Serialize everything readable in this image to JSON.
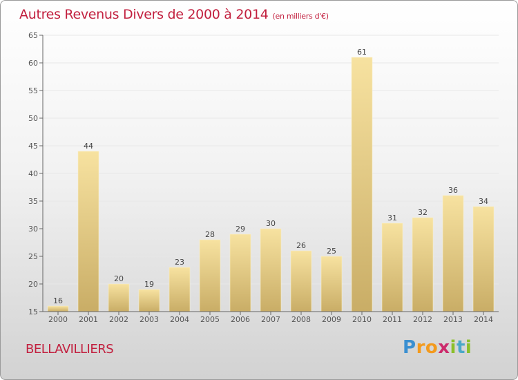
{
  "header": {
    "title": "Autres Revenus Divers de 2000 à 2014",
    "subtitle": "(en milliers d'€)"
  },
  "place": "BELLAVILLIERS",
  "brand": {
    "letters": [
      "P",
      "r",
      "o",
      "x",
      "i",
      "t",
      "i"
    ],
    "colors": [
      "#3a8fd1",
      "#f39a1d",
      "#f39a1d",
      "#cc2a6b",
      "#8bbf2a",
      "#4aa8c8",
      "#8bbf2a"
    ]
  },
  "colors": {
    "title": "#c2203f",
    "bar_light": "#f7e2a0",
    "bar_dark": "#c9ad66",
    "axis": "#666666",
    "grid": "#e8e8e8"
  },
  "chart_data": {
    "type": "bar",
    "categories": [
      "2000",
      "2001",
      "2002",
      "2003",
      "2004",
      "2005",
      "2006",
      "2007",
      "2008",
      "2009",
      "2010",
      "2011",
      "2012",
      "2013",
      "2014"
    ],
    "values": [
      16,
      44,
      20,
      19,
      23,
      28,
      29,
      30,
      26,
      25,
      61,
      31,
      32,
      36,
      34
    ],
    "ylim": [
      15,
      65
    ],
    "yticks": [
      15,
      20,
      25,
      30,
      35,
      40,
      45,
      50,
      55,
      60,
      65
    ],
    "grid": true
  }
}
